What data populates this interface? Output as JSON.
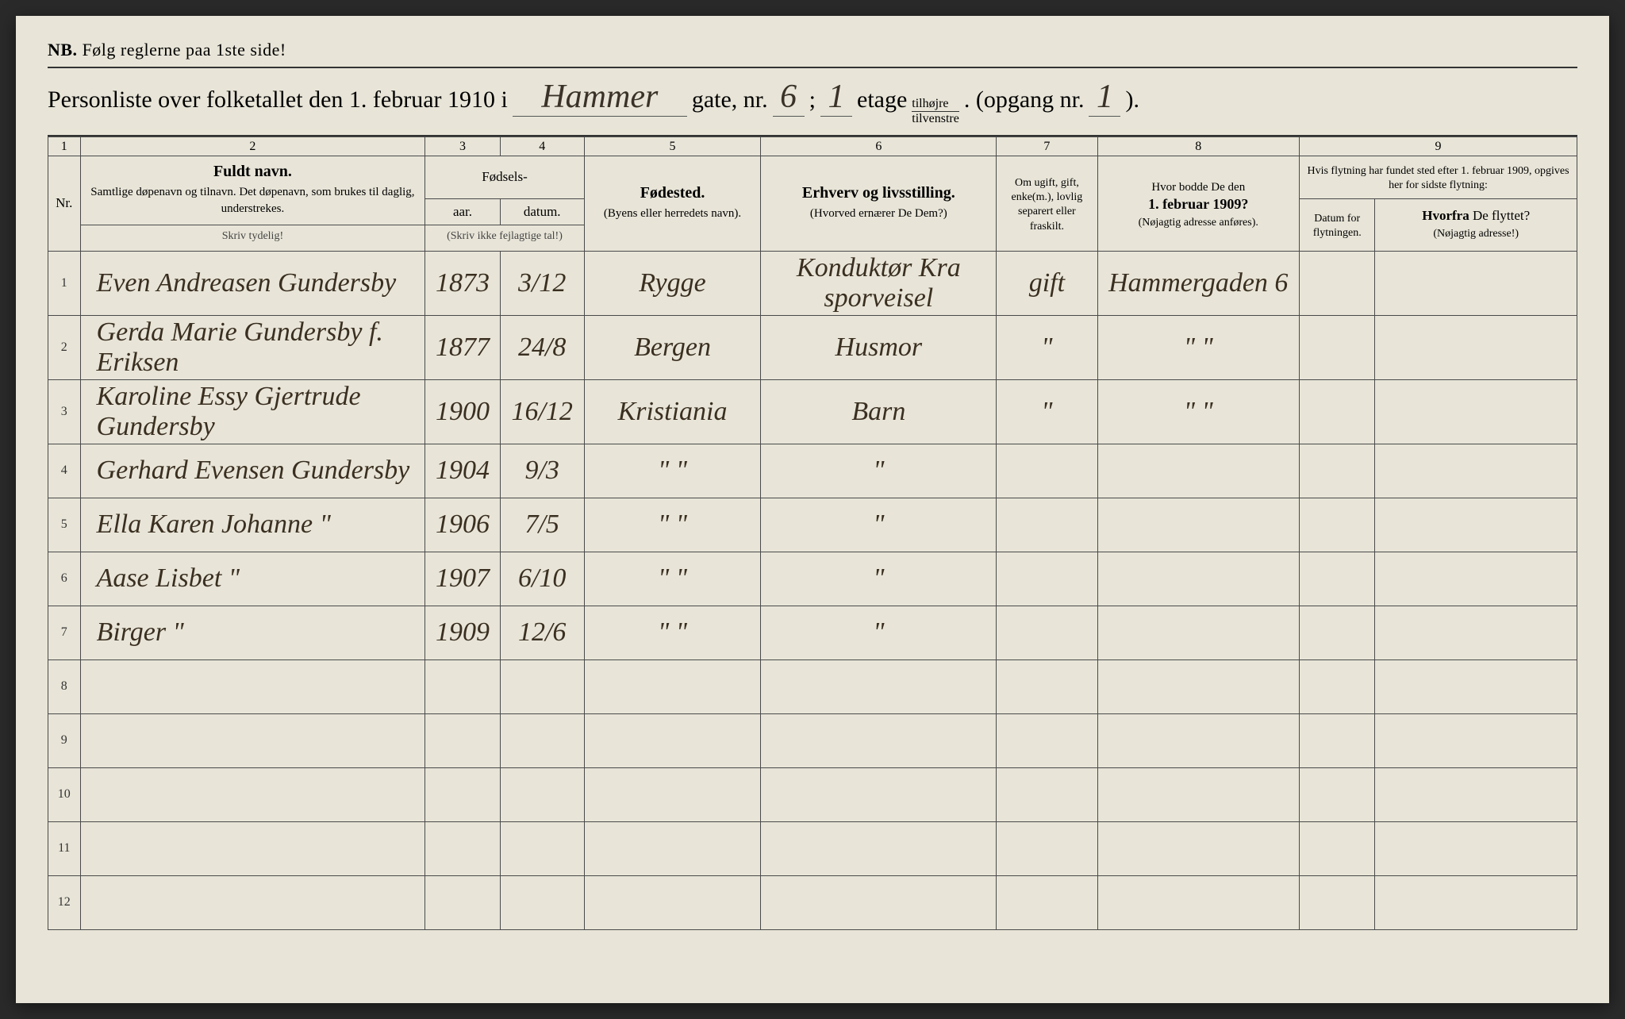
{
  "colors": {
    "paper": "#e8e5d8",
    "ink_print": "#333333",
    "ink_hand": "#3a2f20",
    "border": "#4a4a4a"
  },
  "typography": {
    "print_font": "Georgia, serif",
    "hand_font": "Brush Script MT, cursive",
    "header_fontsize": 30,
    "cell_fontsize": 34,
    "colhead_fontsize": 17
  },
  "nb": {
    "label": "NB.",
    "text": "Følg reglerne paa 1ste side!"
  },
  "header": {
    "prefix": "Personliste over folketallet den 1. februar 1910 i",
    "street": "Hammer",
    "gate_label": "gate, nr.",
    "gate_nr": "6",
    "sep": ";",
    "etage_nr": "1",
    "etage_label": "etage",
    "side_top": "tilhøjre",
    "side_bot": "tilvenstre",
    "opgang_label": ". (opgang nr.",
    "opgang_nr": "1",
    "close": ")."
  },
  "colnums": [
    "1",
    "2",
    "3",
    "4",
    "5",
    "6",
    "7",
    "8",
    "9"
  ],
  "columns": {
    "nr": "Nr.",
    "name_bold": "Fuldt navn.",
    "name_small": "Samtlige døpenavn og tilnavn. Det døpenavn, som brukes til daglig, understrekes.",
    "name_instr": "Skriv tydelig!",
    "birth_group": "Fødsels-",
    "year": "aar.",
    "date": "datum.",
    "birth_instr": "(Skriv ikke fejlagtige tal!)",
    "place_bold": "Fødested.",
    "place_small": "(Byens eller herredets navn).",
    "occ_bold": "Erhverv og livsstilling.",
    "occ_small": "(Hvorved ernærer De Dem?)",
    "marital": "Om ugift, gift, enke(m.), lovlig separert eller fraskilt.",
    "prev_top": "Hvor bodde De den",
    "prev_bold": "1. februar 1909?",
    "prev_small": "(Nøjagtig adresse anføres).",
    "move_group": "Hvis flytning har fundet sted efter 1. februar 1909, opgives her for sidste flytning:",
    "move_date": "Datum for flytningen.",
    "move_from_bold": "Hvorfra",
    "move_from_rest": " De flyttet?",
    "move_from_small": "(Nøjagtig adresse!)"
  },
  "rows": [
    {
      "nr": "1",
      "name": "Even Andreasen Gundersby",
      "year": "1873",
      "date": "3/12",
      "place": "Rygge",
      "occ": "Konduktør Kra sporveisel",
      "marital": "gift",
      "prev": "Hammergaden 6",
      "mdate": "",
      "mfrom": ""
    },
    {
      "nr": "2",
      "name": "Gerda Marie Gundersby f. Eriksen",
      "year": "1877",
      "date": "24/8",
      "place": "Bergen",
      "occ": "Husmor",
      "marital": "\"",
      "prev": "\"  \"",
      "mdate": "",
      "mfrom": ""
    },
    {
      "nr": "3",
      "name": "Karoline Essy Gjertrude Gundersby",
      "year": "1900",
      "date": "16/12",
      "place": "Kristiania",
      "occ": "Barn",
      "marital": "\"",
      "prev": "\"  \"",
      "mdate": "",
      "mfrom": ""
    },
    {
      "nr": "4",
      "name": "Gerhard Evensen Gundersby",
      "year": "1904",
      "date": "9/3",
      "place": "\"  \"",
      "occ": "\"",
      "marital": "",
      "prev": "",
      "mdate": "",
      "mfrom": ""
    },
    {
      "nr": "5",
      "name": "Ella Karen Johanne  \"",
      "year": "1906",
      "date": "7/5",
      "place": "\"  \"",
      "occ": "\"",
      "marital": "",
      "prev": "",
      "mdate": "",
      "mfrom": ""
    },
    {
      "nr": "6",
      "name": "Aase Lisbet  \"",
      "year": "1907",
      "date": "6/10",
      "place": "\"  \"",
      "occ": "\"",
      "marital": "",
      "prev": "",
      "mdate": "",
      "mfrom": ""
    },
    {
      "nr": "7",
      "name": "Birger  \"",
      "year": "1909",
      "date": "12/6",
      "place": "\"  \"",
      "occ": "\"",
      "marital": "",
      "prev": "",
      "mdate": "",
      "mfrom": ""
    },
    {
      "nr": "8",
      "name": "",
      "year": "",
      "date": "",
      "place": "",
      "occ": "",
      "marital": "",
      "prev": "",
      "mdate": "",
      "mfrom": ""
    },
    {
      "nr": "9",
      "name": "",
      "year": "",
      "date": "",
      "place": "",
      "occ": "",
      "marital": "",
      "prev": "",
      "mdate": "",
      "mfrom": ""
    },
    {
      "nr": "10",
      "name": "",
      "year": "",
      "date": "",
      "place": "",
      "occ": "",
      "marital": "",
      "prev": "",
      "mdate": "",
      "mfrom": ""
    },
    {
      "nr": "11",
      "name": "",
      "year": "",
      "date": "",
      "place": "",
      "occ": "",
      "marital": "",
      "prev": "",
      "mdate": "",
      "mfrom": ""
    },
    {
      "nr": "12",
      "name": "",
      "year": "",
      "date": "",
      "place": "",
      "occ": "",
      "marital": "",
      "prev": "",
      "mdate": "",
      "mfrom": ""
    }
  ]
}
